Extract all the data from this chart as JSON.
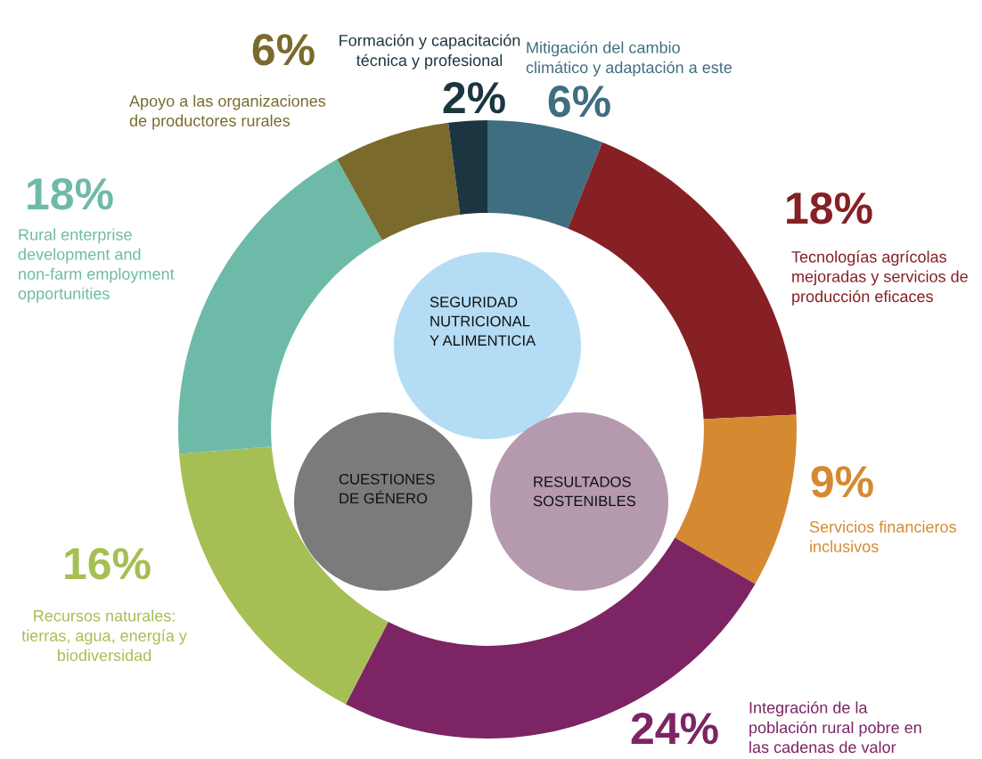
{
  "chart_data": {
    "type": "donut",
    "categories": [
      "Mitigación del cambio\nclimático y adaptación a este",
      "Tecnologías agrícolas\nmejoradas y servicios de\nproducción eficaces",
      "Servicios financieros\ninclusivos",
      "Integración de la\npoblación rural pobre en\nlas cadenas de valor",
      "Recursos naturales:\ntierras, agua, energía y\nbiodiversidad",
      "Rural enterprise\ndevelopment and\nnon-farm employment\nopportunities",
      "Apoyo a las organizaciones\nde productores rurales",
      "Formación y capacitación\ntécnica y profesional"
    ],
    "values": [
      6,
      18,
      9,
      24,
      16,
      18,
      6,
      2
    ],
    "value_labels": [
      "6%",
      "18%",
      "9%",
      "24%",
      "16%",
      "18%",
      "6%",
      "2%"
    ],
    "colors": [
      "#3f6e80",
      "#862024",
      "#d58a32",
      "#7d2464",
      "#a5bf54",
      "#6ebaa8",
      "#7a6a2c",
      "#1b3640"
    ],
    "annotations": [
      "SEGURIDAD\nNUTRICIONAL\nY ALIMENTICIA",
      "CUESTIONES\nDE GÉNERO",
      "RESULTADOS\nSOSTENIBLES"
    ],
    "legend": false
  }
}
